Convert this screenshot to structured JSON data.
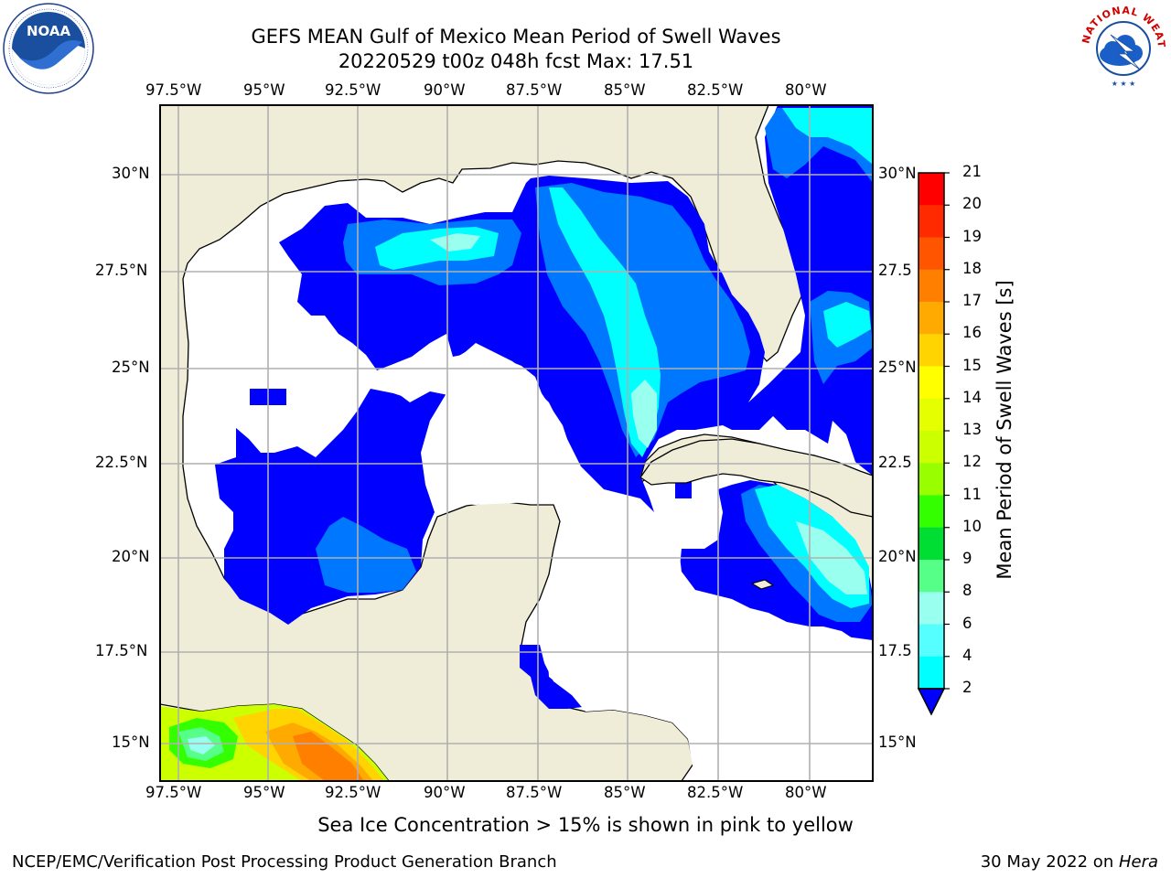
{
  "header": {
    "title_line1": "GEFS MEAN Gulf of Mexico Mean Period of Swell Waves",
    "title_line2": "20220529 t00z 048h fcst   Max: 17.51"
  },
  "logos": {
    "left": {
      "name": "noaa-logo",
      "text": "NOAA",
      "ring_text": "NATIONAL OCEANIC AND ATMOSPHERIC ADMINISTRATION · U.S. DEPARTMENT OF COMMERCE"
    },
    "right": {
      "name": "nws-logo",
      "ring_text": "NATIONAL WEATHER SERVICE"
    }
  },
  "map": {
    "lon_labels": [
      "97.5°W",
      "95°W",
      "92.5°W",
      "90°W",
      "87.5°W",
      "85°W",
      "82.5°W",
      "80°W"
    ],
    "lat_labels": [
      "30°N",
      "27.5°N",
      "25°N",
      "22.5°N",
      "20°N",
      "17.5°N",
      "15°N"
    ],
    "lat_labels_right": [
      "30°N",
      "27.5",
      "25°N",
      "22.5",
      "20°N",
      "17.5",
      "15°N"
    ],
    "colors": {
      "land": "#efedd8",
      "water": "#ffffff",
      "grid": "#b0b0b0"
    }
  },
  "colorbar": {
    "label": "Mean Period of Swell Waves [s]",
    "ticks": [
      "21",
      "20",
      "19",
      "18",
      "17",
      "16",
      "15",
      "14",
      "13",
      "12",
      "11",
      "10",
      "9",
      "8",
      "6",
      "4",
      "2"
    ],
    "colors": [
      "#ff0000",
      "#ff2a00",
      "#ff5500",
      "#ff8000",
      "#ffaa00",
      "#ffd400",
      "#ffff00",
      "#e6ff00",
      "#ccff00",
      "#99ff00",
      "#33ff00",
      "#00dd33",
      "#55ff88",
      "#99ffee",
      "#55ffff",
      "#00ffff",
      "#0077ff",
      "#0000ff"
    ]
  },
  "note": "Sea Ice Concentration > 15% is shown in pink to yellow",
  "footer": {
    "left": "NCEP/EMC/Verification Post Processing Product Generation Branch",
    "right_prefix": "30 May 2022 on ",
    "right_italic": "Hera"
  }
}
